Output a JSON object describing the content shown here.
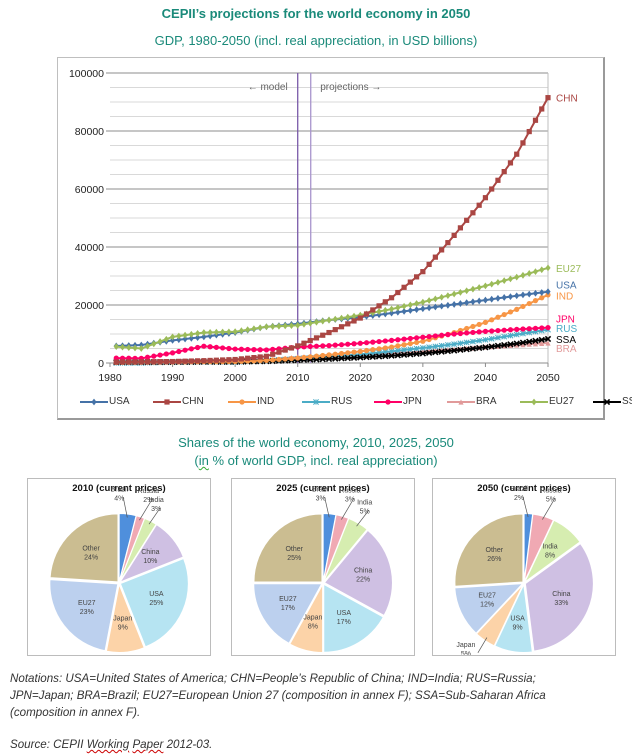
{
  "header": {
    "main_title": "CEPII’s projections for the world economy in 2050",
    "subtitle": "GDP, 1980-2050 (incl. real appreciation, in USD billions)"
  },
  "chart_data": [
    {
      "type": "line",
      "title": "GDP, 1980-2050 (incl. real appreciation, in USD billions)",
      "xlabel": "",
      "ylabel": "",
      "xlim": [
        1980,
        2050
      ],
      "ylim": [
        0,
        100000
      ],
      "x_ticks": [
        "1980",
        "1990",
        "2000",
        "2010",
        "2020",
        "2030",
        "2040",
        "2050"
      ],
      "y_ticks": [
        "0",
        "20000",
        "40000",
        "60000",
        "80000",
        "100000"
      ],
      "grid": true,
      "legend": "bottom",
      "annotations": {
        "model_label": "← model",
        "projections_label": "projections →",
        "model_line_year": 2010,
        "projections_line_year": 2012
      },
      "x": [
        1980,
        1985,
        1990,
        1995,
        2000,
        2005,
        2010,
        2015,
        2020,
        2025,
        2030,
        2035,
        2040,
        2045,
        2050
      ],
      "series": [
        {
          "name": "USA",
          "color": "#4572a7",
          "marker": "diamond",
          "end_label": "USA",
          "values": [
            5800,
            6200,
            7800,
            9000,
            10500,
            12500,
            13500,
            14800,
            15800,
            17200,
            18700,
            20200,
            21700,
            23200,
            24600
          ]
        },
        {
          "name": "CHN",
          "color": "#aa4643",
          "marker": "square",
          "end_label": "CHN",
          "values": [
            300,
            400,
            500,
            800,
            1200,
            2300,
            5900,
            10500,
            15500,
            22500,
            31500,
            44000,
            57000,
            72000,
            91500
          ]
        },
        {
          "name": "IND",
          "color": "#f79646",
          "marker": "circle",
          "end_label": "IND",
          "values": [
            200,
            250,
            350,
            450,
            500,
            900,
            1700,
            2800,
            4000,
            5500,
            7500,
            10500,
            14000,
            18500,
            23500
          ]
        },
        {
          "name": "RUS",
          "color": "#4bacc6",
          "marker": "star",
          "end_label": "RUS",
          "values": [
            0,
            0,
            300,
            400,
            300,
            800,
            1500,
            2200,
            3000,
            4000,
            5200,
            6500,
            8000,
            9800,
            11500
          ]
        },
        {
          "name": "JPN",
          "color": "#ff0066",
          "marker": "circle",
          "end_label": "JPN",
          "values": [
            1700,
            1600,
            3500,
            5800,
            4800,
            4500,
            5500,
            6000,
            6800,
            7800,
            8900,
            10000,
            10900,
            11600,
            12200
          ]
        },
        {
          "name": "BRA",
          "color": "#e19a9a",
          "marker": "triangle",
          "end_label": "BRA",
          "values": [
            200,
            250,
            450,
            700,
            650,
            900,
            2100,
            2500,
            2900,
            3400,
            4000,
            4700,
            5500,
            6200,
            6900
          ]
        },
        {
          "name": "EU27",
          "color": "#9bbb59",
          "marker": "diamond",
          "end_label": "EU27",
          "values": [
            5800,
            5000,
            9000,
            10500,
            10800,
            12500,
            13000,
            14800,
            16500,
            18600,
            21000,
            23800,
            26600,
            29600,
            32800
          ]
        },
        {
          "name": "SSA",
          "color": "#000000",
          "marker": "x",
          "end_label": "SSA",
          "values": [
            300,
            300,
            350,
            400,
            400,
            600,
            1000,
            1400,
            1900,
            2500,
            3300,
            4300,
            5400,
            6700,
            8300
          ]
        }
      ]
    },
    {
      "type": "pie",
      "title": "2010 (current prices)",
      "slices": [
        {
          "label": "Brazil",
          "value": 4,
          "color": "#4f8fdc"
        },
        {
          "label": "Russia",
          "value": 2,
          "color": "#f0a9b3"
        },
        {
          "label": "India",
          "value": 3,
          "color": "#d6edb0"
        },
        {
          "label": "China",
          "value": 10,
          "color": "#cfc0e3"
        },
        {
          "label": "USA",
          "value": 25,
          "color": "#b6e4f2"
        },
        {
          "label": "Japan",
          "value": 9,
          "color": "#fcd3a8"
        },
        {
          "label": "EU27",
          "value": 23,
          "color": "#bcd0ee"
        },
        {
          "label": "Other",
          "value": 24,
          "color": "#cbbd91"
        }
      ]
    },
    {
      "type": "pie",
      "title": "2025 (current prices)",
      "slices": [
        {
          "label": "Brazil",
          "value": 3,
          "color": "#4f8fdc"
        },
        {
          "label": "Russia",
          "value": 3,
          "color": "#f0a9b3"
        },
        {
          "label": "India",
          "value": 5,
          "color": "#d6edb0"
        },
        {
          "label": "China",
          "value": 22,
          "color": "#cfc0e3"
        },
        {
          "label": "USA",
          "value": 17,
          "color": "#b6e4f2"
        },
        {
          "label": "Japan",
          "value": 8,
          "color": "#fcd3a8"
        },
        {
          "label": "EU27",
          "value": 17,
          "color": "#bcd0ee"
        },
        {
          "label": "Other",
          "value": 25,
          "color": "#cbbd91"
        }
      ]
    },
    {
      "type": "pie",
      "title": "2050 (current prices)",
      "slices": [
        {
          "label": "Brazil",
          "value": 2,
          "color": "#4f8fdc"
        },
        {
          "label": "Russia",
          "value": 5,
          "color": "#f0a9b3"
        },
        {
          "label": "India",
          "value": 8,
          "color": "#d6edb0"
        },
        {
          "label": "China",
          "value": 33,
          "color": "#cfc0e3"
        },
        {
          "label": "USA",
          "value": 9,
          "color": "#b6e4f2"
        },
        {
          "label": "Japan",
          "value": 5,
          "color": "#fcd3a8"
        },
        {
          "label": "EU27",
          "value": 12,
          "color": "#bcd0ee"
        },
        {
          "label": "Other",
          "value": 26,
          "color": "#cbbd91"
        }
      ]
    }
  ],
  "pies_section": {
    "title_line1": "Shares of the world economy, 2010, 2025, 2050",
    "title_line2_prefix": "(",
    "title_line2_in": "in",
    "title_line2_rest": " % of world GDP, incl. real appreciation)"
  },
  "notes": {
    "line1": "Notations: USA=United States of America; CHN=People’s Republic of China; IND=India; RUS=Russia;",
    "line2": "JPN=Japan; BRA=Brazil; EU27=European Union 27 (composition in annex F); SSA=Sub-Saharan Africa",
    "line3": "(composition in annex F)."
  },
  "source": {
    "prefix": "Source: CEPII ",
    "word1": "Working",
    "space": " ",
    "word2": "Paper",
    "suffix": " 2012-03."
  }
}
